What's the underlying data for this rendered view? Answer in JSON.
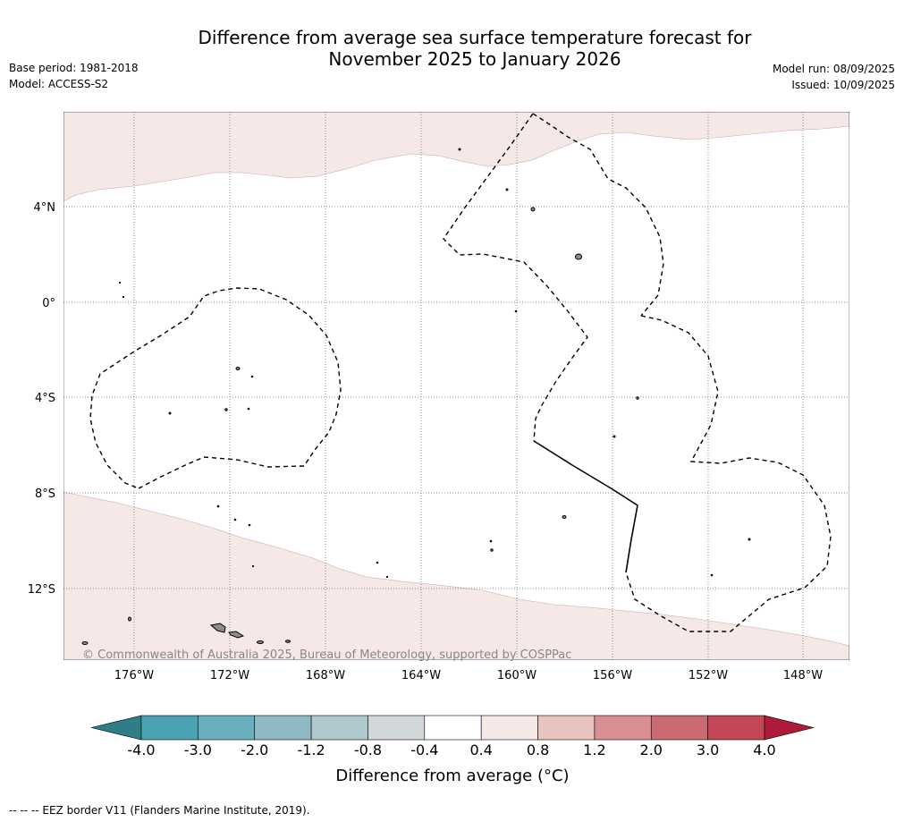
{
  "header": {
    "title_line1": "Difference from average sea surface temperature forecast for",
    "title_line2": "November 2025 to January 2026",
    "base_period": "Base period: 1981-2018",
    "model": "Model: ACCESS-S2",
    "model_run": "Model run: 08/09/2025",
    "issued": "Issued: 10/09/2025"
  },
  "map": {
    "copyright": "© Commonwealth of Australia 2025, Bureau of Meteorology, supported by COSPPac",
    "lat_labels": [
      "4°N",
      "0°",
      "4°S",
      "8°S",
      "12°S"
    ],
    "lon_labels": [
      "176°W",
      "172°W",
      "168°W",
      "164°W",
      "160°W",
      "156°W",
      "152°W",
      "148°W"
    ],
    "ocean_color": "#ffffff",
    "anomaly_fill_color": "#f5e8e6",
    "land_color": "#8c8c8c"
  },
  "legend": {
    "title": "Difference from average (°C)",
    "tick_labels": [
      "-4.0",
      "-3.0",
      "-2.0",
      "-1.2",
      "-0.8",
      "-0.4",
      "0.4",
      "0.8",
      "1.2",
      "2.0",
      "3.0",
      "4.0"
    ],
    "colors": [
      "#2e7d87",
      "#4aa3b3",
      "#6aafbd",
      "#8fbac5",
      "#aec8ce",
      "#d2d8d9",
      "#ffffff",
      "#f5e8e6",
      "#e8c4c0",
      "#d88e93",
      "#cc6a74",
      "#c24858",
      "#b01a3a"
    ]
  },
  "footnote": "--  --  -- EEZ border V11 (Flanders Marine Institute, 2019)."
}
